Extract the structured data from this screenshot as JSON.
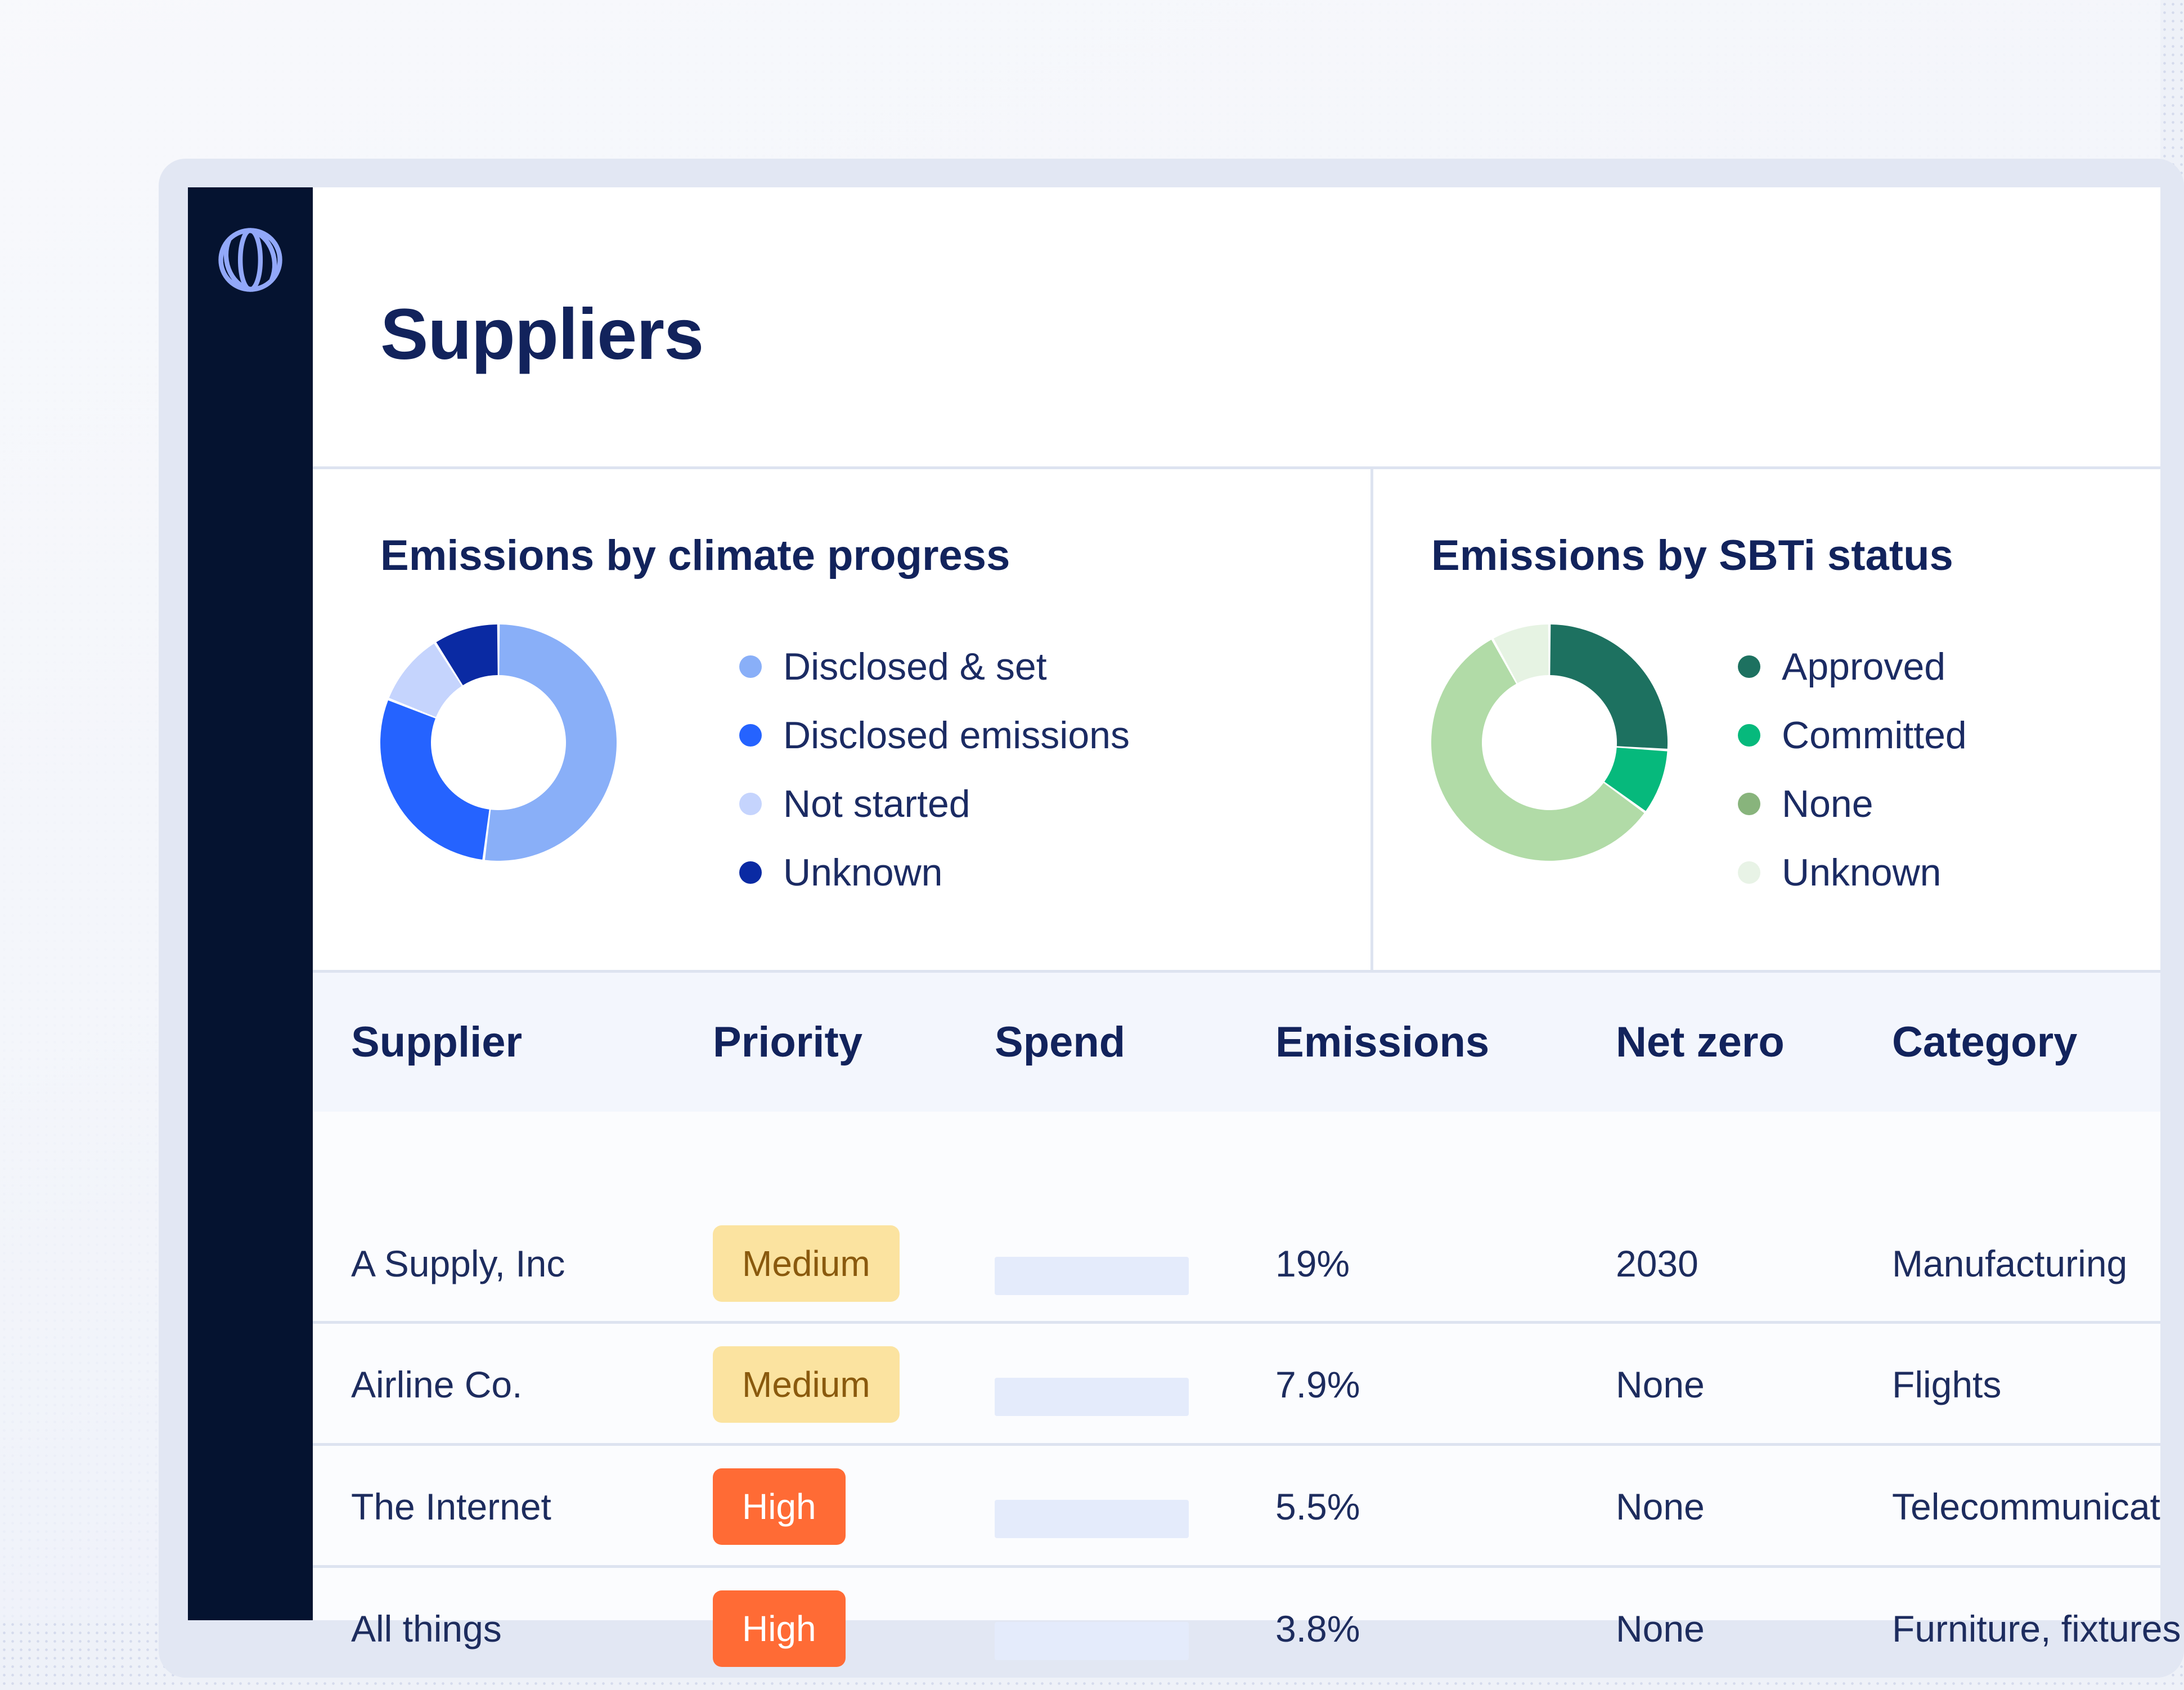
{
  "app": {
    "page_title": "Suppliers",
    "logo_icon": "globe-icon"
  },
  "colors": {
    "sidebar": "#051330",
    "title": "#12235c",
    "badge_medium_bg": "#fbe3a0",
    "badge_medium_text": "#8a5a0e",
    "badge_high_bg": "#ff6b35"
  },
  "chart_data": [
    {
      "type": "pie",
      "title": "Emissions by climate progress",
      "series": [
        {
          "name": "Disclosed & set",
          "value": 52,
          "color": "#89aff8"
        },
        {
          "name": "Disclosed emissions",
          "value": 29,
          "color": "#2563ff"
        },
        {
          "name": "Not started",
          "value": 10,
          "color": "#c5d4fd"
        },
        {
          "name": "Unknown",
          "value": 9,
          "color": "#0a2aa3"
        }
      ],
      "legend_position": "right"
    },
    {
      "type": "pie",
      "title": "Emissions by SBTi status",
      "series": [
        {
          "name": "Approved",
          "value": 26,
          "color": "#1d7160"
        },
        {
          "name": "Committed",
          "value": 9,
          "color": "#06b97c"
        },
        {
          "name": "None",
          "value": 57,
          "color": "#b1dba7"
        },
        {
          "name": "Unknown",
          "value": 8,
          "color": "#e6f3e3"
        }
      ],
      "legend_colors": [
        "#1d7160",
        "#06b97c",
        "#88b47c",
        "#e8f3e6"
      ],
      "legend_position": "right"
    }
  ],
  "table": {
    "columns": [
      "Supplier",
      "Priority",
      "Spend",
      "Emissions",
      "Net zero",
      "Category"
    ],
    "rows": [
      {
        "supplier": "A Supply, Inc",
        "priority": "Medium",
        "priority_level": "medium",
        "emissions": "19%",
        "net_zero": "2030",
        "category": "Manufacturing"
      },
      {
        "supplier": "Airline Co.",
        "priority": "Medium",
        "priority_level": "medium",
        "emissions": "7.9%",
        "net_zero": "None",
        "category": "Flights"
      },
      {
        "supplier": "The Internet",
        "priority": "High",
        "priority_level": "high",
        "emissions": "5.5%",
        "net_zero": "None",
        "category": "Telecommunicat"
      },
      {
        "supplier": "All things",
        "priority": "High",
        "priority_level": "high",
        "emissions": "3.8%",
        "net_zero": "None",
        "category": "Furniture, fixtures"
      }
    ]
  }
}
